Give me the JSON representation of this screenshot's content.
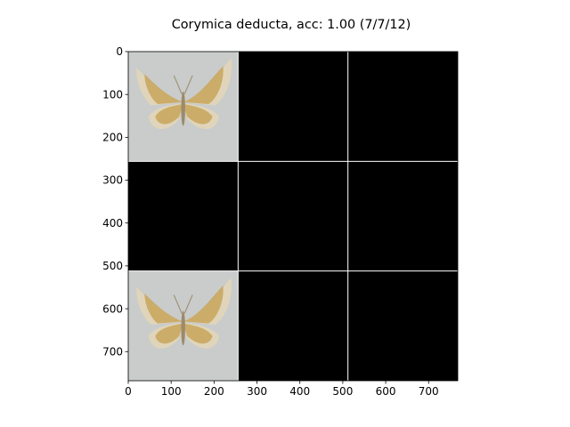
{
  "chart_data": {
    "type": "image_grid",
    "title": "Corymica deducta, acc: 1.00 (7/7/12)",
    "xlabel": "",
    "ylabel": "",
    "xlim": [
      0,
      768
    ],
    "ylim": [
      768,
      0
    ],
    "x_ticks": [
      0,
      100,
      200,
      300,
      400,
      500,
      600,
      700
    ],
    "y_ticks": [
      0,
      100,
      200,
      300,
      400,
      500,
      600,
      700
    ],
    "grid_rows": 3,
    "grid_cols": 3,
    "cell_size": 256,
    "cells": [
      {
        "row": 0,
        "col": 0,
        "content": "moth-photo"
      },
      {
        "row": 0,
        "col": 1,
        "content": "empty"
      },
      {
        "row": 0,
        "col": 2,
        "content": "empty"
      },
      {
        "row": 1,
        "col": 0,
        "content": "empty"
      },
      {
        "row": 1,
        "col": 1,
        "content": "empty"
      },
      {
        "row": 1,
        "col": 2,
        "content": "empty"
      },
      {
        "row": 2,
        "col": 0,
        "content": "moth-photo"
      },
      {
        "row": 2,
        "col": 1,
        "content": "empty"
      },
      {
        "row": 2,
        "col": 2,
        "content": "empty"
      }
    ],
    "colors": {
      "empty_cell": "#000000",
      "grid_line": "#ffffff",
      "photo_background": "#c9cccb",
      "wing_gold": "#c8a55a",
      "wing_pale": "#e2d6b8",
      "body": "#9c8a6a"
    }
  }
}
